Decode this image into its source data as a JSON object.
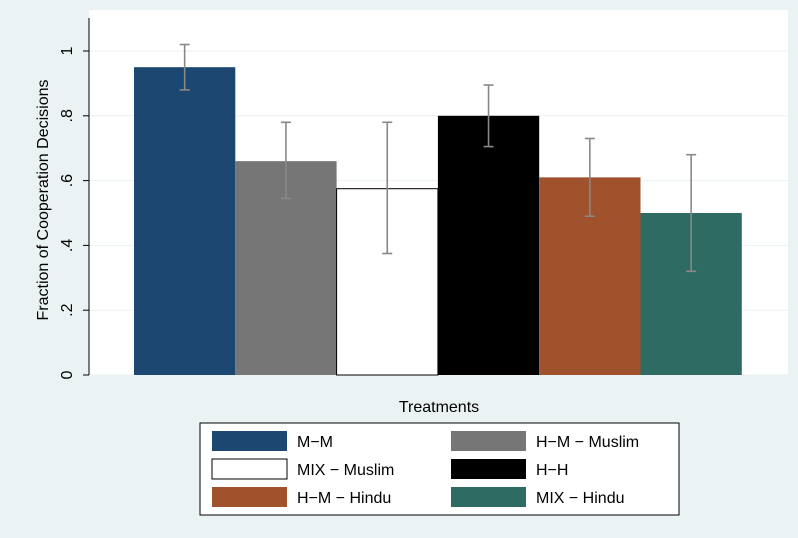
{
  "chart_data": {
    "type": "bar",
    "xlabel": "Treatments",
    "ylabel": "Fraction of Cooperation Decisions",
    "ylim": [
      0,
      1.1
    ],
    "yticks": [
      0,
      0.2,
      0.4,
      0.6,
      0.8,
      1
    ],
    "ytick_labels": [
      "0",
      ".2",
      ".4",
      ".6",
      ".8",
      "1"
    ],
    "grid": true,
    "legend_position": "bottom",
    "series": [
      {
        "name": "M−M",
        "value": 0.95,
        "ci": [
          0.88,
          1.02
        ],
        "color": "#1b4770"
      },
      {
        "name": "H−M − Muslim",
        "value": 0.66,
        "ci": [
          0.545,
          0.78
        ],
        "color": "#767676"
      },
      {
        "name": "MIX − Muslim",
        "value": 0.575,
        "ci": [
          0.375,
          0.78
        ],
        "color": "#ffffff"
      },
      {
        "name": "H−H",
        "value": 0.8,
        "ci": [
          0.705,
          0.895
        ],
        "color": "#000000"
      },
      {
        "name": "H−M − Hindu",
        "value": 0.61,
        "ci": [
          0.49,
          0.73
        ],
        "color": "#a0522d"
      },
      {
        "name": "MIX − Hindu",
        "value": 0.5,
        "ci": [
          0.32,
          0.68
        ],
        "color": "#2e6b62"
      }
    ]
  }
}
